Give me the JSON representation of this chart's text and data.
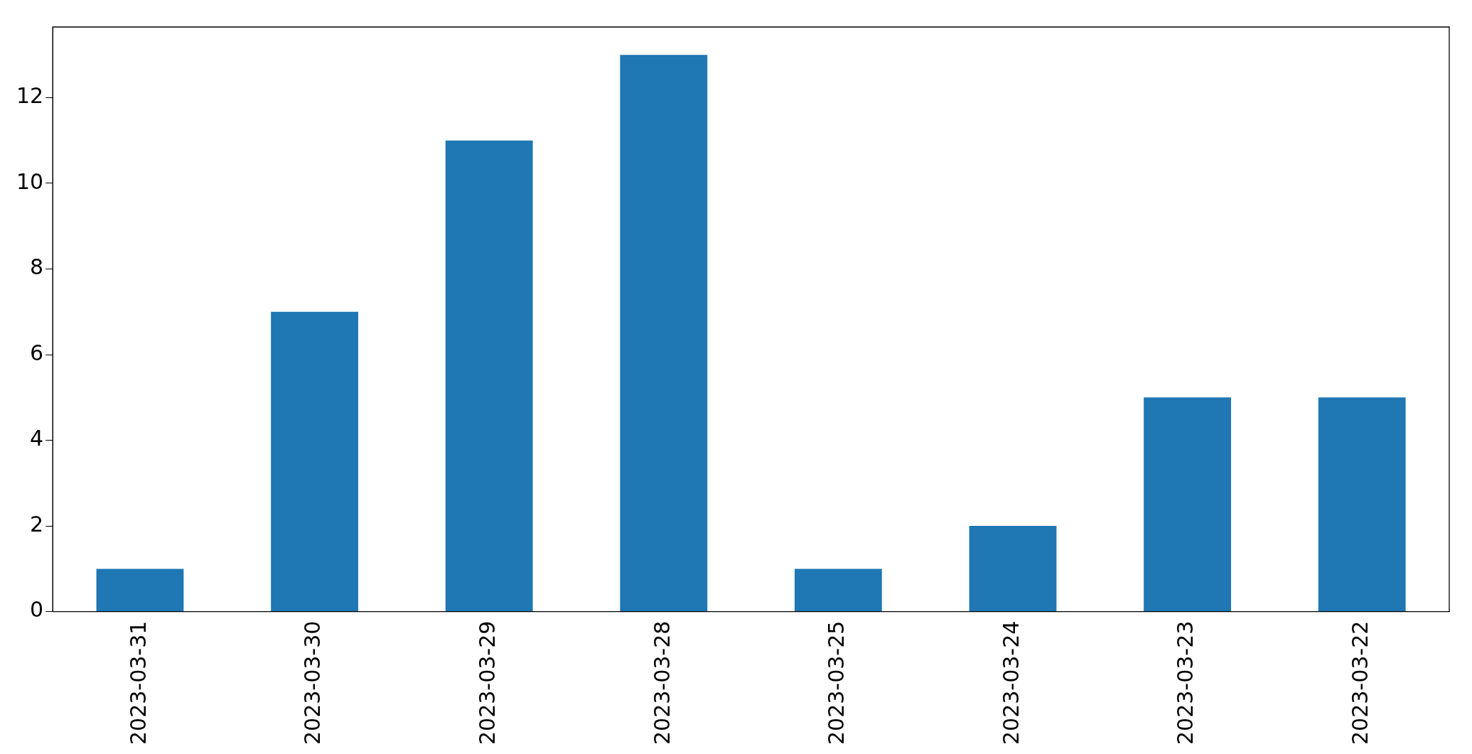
{
  "chart_data": {
    "type": "bar",
    "categories": [
      "2023-03-31",
      "2023-03-30",
      "2023-03-29",
      "2023-03-28",
      "2023-03-25",
      "2023-03-24",
      "2023-03-23",
      "2023-03-22"
    ],
    "values": [
      1,
      7,
      11,
      13,
      1,
      2,
      5,
      5
    ],
    "color": "#1f77b4",
    "ylim": [
      0,
      13.65
    ],
    "yticks": [
      0,
      2,
      4,
      6,
      8,
      10,
      12
    ],
    "grid": false,
    "legend": false
  }
}
